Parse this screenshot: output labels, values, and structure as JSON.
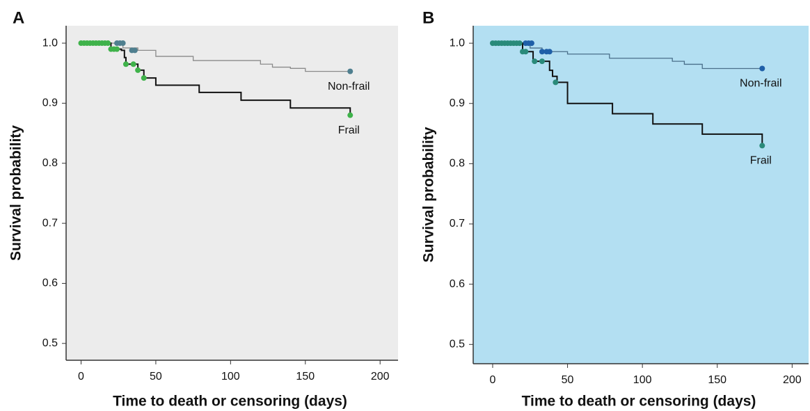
{
  "chart_data": [
    {
      "type": "step",
      "label": "A",
      "background": "#ececec",
      "x_label": "Time to death or censoring (days)",
      "y_label": "Survival probability",
      "xlim": [
        -10,
        212
      ],
      "ylim": [
        0.472,
        1.029
      ],
      "xticks": [
        0,
        50,
        100,
        150,
        200
      ],
      "yticks": [
        {
          "value": 0.5,
          "label": "0.5"
        },
        {
          "value": 0.6,
          "label": "0.6"
        },
        {
          "value": 0.7,
          "label": "0.7"
        },
        {
          "value": 0.8,
          "label": "0.8"
        },
        {
          "value": 0.9,
          "label": "0.9"
        },
        {
          "value": 1.0,
          "label": "1.0"
        }
      ],
      "series": [
        {
          "name": "Non-frail",
          "color": "#8a8a8a",
          "marker_color": "#4f7f8f",
          "x": [
            0,
            28,
            38,
            50,
            75,
            120,
            128,
            140,
            150,
            180
          ],
          "values": [
            1.0,
            0.992,
            0.988,
            0.978,
            0.971,
            0.965,
            0.96,
            0.958,
            0.953,
            0.953
          ],
          "censored_x": [
            24,
            26,
            28,
            34,
            36,
            180
          ],
          "censored_values": [
            1.0,
            1.0,
            1.0,
            0.988,
            0.988,
            0.953
          ]
        },
        {
          "name": "Frail",
          "color": "#111111",
          "marker_color": "#3fb24a",
          "x": [
            0,
            20,
            27,
            29,
            30,
            38,
            42,
            50,
            79,
            107,
            140,
            180
          ],
          "values": [
            1.0,
            0.99,
            0.988,
            0.976,
            0.965,
            0.955,
            0.942,
            0.93,
            0.918,
            0.905,
            0.892,
            0.88
          ],
          "censored_x": [
            0,
            2,
            4,
            6,
            8,
            10,
            12,
            14,
            16,
            18,
            20,
            22,
            24,
            30,
            35,
            38,
            42,
            180
          ],
          "censored_values": [
            1.0,
            1.0,
            1.0,
            1.0,
            1.0,
            1.0,
            1.0,
            1.0,
            1.0,
            1.0,
            0.99,
            0.99,
            0.99,
            0.965,
            0.965,
            0.955,
            0.942,
            0.88
          ]
        }
      ]
    },
    {
      "type": "step",
      "label": "B",
      "background": "#b3dff2",
      "x_label": "Time to death or censoring (days)",
      "y_label": "Survival probability",
      "xlim": [
        -13,
        211
      ],
      "ylim": [
        0.468,
        1.029
      ],
      "xticks": [
        0,
        50,
        100,
        150,
        200
      ],
      "yticks": [
        {
          "value": 0.5,
          "label": "0.5"
        },
        {
          "value": 0.6,
          "label": "0.6"
        },
        {
          "value": 0.7,
          "label": "0.7"
        },
        {
          "value": 0.8,
          "label": "0.8"
        },
        {
          "value": 0.9,
          "label": "0.9"
        },
        {
          "value": 1.0,
          "label": "1.0"
        }
      ],
      "series": [
        {
          "name": "Non-frail",
          "color": "#4a6f8a",
          "marker_color": "#1f5fa8",
          "x": [
            0,
            25,
            33,
            50,
            78,
            120,
            128,
            140,
            180
          ],
          "values": [
            1.0,
            0.992,
            0.986,
            0.982,
            0.975,
            0.97,
            0.965,
            0.958,
            0.958
          ],
          "censored_x": [
            22,
            24,
            26,
            33,
            36,
            38,
            180
          ],
          "censored_values": [
            1.0,
            1.0,
            1.0,
            0.986,
            0.986,
            0.986,
            0.958
          ]
        },
        {
          "name": "Frail",
          "color": "#111111",
          "marker_color": "#2a8a7a",
          "x": [
            0,
            20,
            27,
            30,
            38,
            40,
            43,
            50,
            80,
            107,
            140,
            180
          ],
          "values": [
            1.0,
            0.986,
            0.97,
            0.97,
            0.955,
            0.945,
            0.935,
            0.9,
            0.883,
            0.866,
            0.849,
            0.83
          ],
          "censored_x": [
            0,
            2,
            4,
            6,
            8,
            10,
            12,
            14,
            16,
            18,
            20,
            22,
            28,
            33,
            42,
            180
          ],
          "censored_values": [
            1.0,
            1.0,
            1.0,
            1.0,
            1.0,
            1.0,
            1.0,
            1.0,
            1.0,
            1.0,
            0.986,
            0.986,
            0.97,
            0.97,
            0.935,
            0.83
          ]
        }
      ]
    }
  ]
}
